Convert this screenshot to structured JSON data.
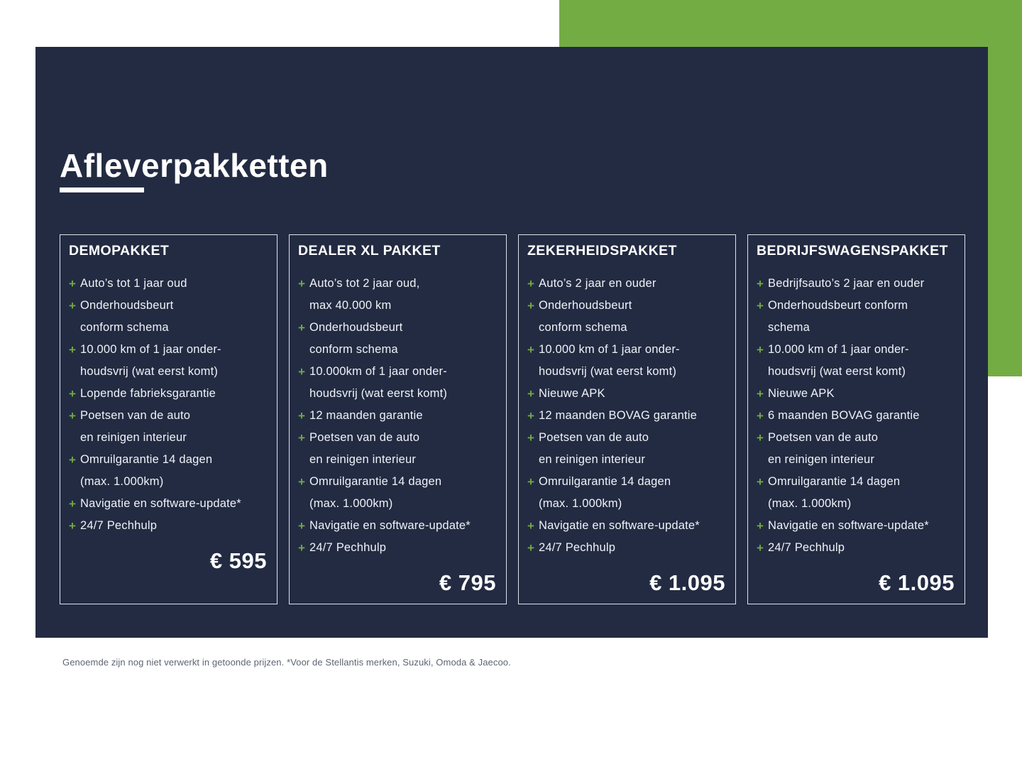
{
  "page": {
    "title": "Afleverpakketten",
    "footnote": "Genoemde zijn nog niet verwerkt in getoonde prijzen. *Voor de Stellantis merken, Suzuki, Omoda & Jaecoo."
  },
  "icons": {
    "plus": "+"
  },
  "colors": {
    "panel_navy": "#232B42",
    "accent_green_block": "#74AC44",
    "plus_green": "#73A943",
    "text_white": "#FFFFFF",
    "text_light": "#EFF2F7",
    "card_border": "#DEE3EC",
    "footnote_gray": "#5F6573"
  },
  "packages": [
    {
      "name": "DEMOPAKKET",
      "price": "€ 595",
      "items": [
        "Auto’s tot 1 jaar oud",
        "Onderhoudsbeurt\nconform schema",
        "10.000 km of 1 jaar onder-\nhoudsvrij (wat eerst komt)",
        "Lopende fabrieksgarantie",
        "Poetsen van de auto\nen reinigen interieur",
        "Omruilgarantie 14 dagen\n(max. 1.000km)",
        "Navigatie en software-update*",
        "24/7 Pechhulp"
      ]
    },
    {
      "name": "DEALER XL PAKKET",
      "price": "€ 795",
      "items": [
        "Auto’s tot 2 jaar oud,\nmax 40.000 km",
        "Onderhoudsbeurt\nconform schema",
        "10.000km of 1 jaar onder-\nhoudsvrij (wat eerst komt)",
        "12 maanden garantie",
        "Poetsen van de auto\nen reinigen interieur",
        "Omruilgarantie 14 dagen\n(max. 1.000km)",
        "Navigatie en software-update*",
        "24/7 Pechhulp"
      ]
    },
    {
      "name": "ZEKERHEIDSPAKKET",
      "price": "€ 1.095",
      "items": [
        "Auto’s 2 jaar en ouder",
        "Onderhoudsbeurt\nconform schema",
        "10.000 km of 1 jaar onder-\nhoudsvrij (wat eerst komt)",
        "Nieuwe APK",
        "12 maanden BOVAG garantie",
        "Poetsen van de auto\nen reinigen interieur",
        "Omruilgarantie 14 dagen\n(max. 1.000km)",
        "Navigatie en software-update*",
        "24/7 Pechhulp"
      ]
    },
    {
      "name": "BEDRIJFSWAGENSPAKKET",
      "price": "€ 1.095",
      "items": [
        "Bedrijfsauto’s 2 jaar en ouder",
        "Onderhoudsbeurt conform\nschema",
        "10.000 km of 1 jaar onder-\nhoudsvrij (wat eerst komt)",
        "Nieuwe APK",
        "6 maanden BOVAG garantie",
        "Poetsen van de auto\nen reinigen interieur",
        "Omruilgarantie 14 dagen\n(max. 1.000km)",
        "Navigatie en software-update*",
        "24/7 Pechhulp"
      ]
    }
  ]
}
